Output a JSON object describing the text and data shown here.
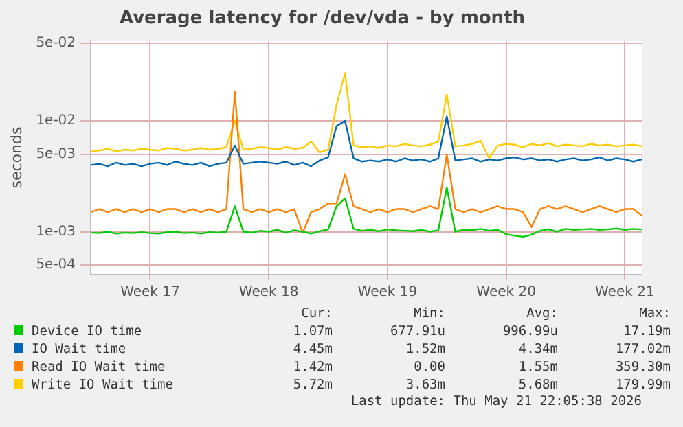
{
  "chart_data": {
    "type": "line",
    "title": "Average latency for /dev/vda - by month",
    "ylabel": "seconds",
    "log": "y",
    "grid": true,
    "legend": "bottom",
    "marker": "none",
    "line_style": "solid",
    "categories": [
      null,
      null,
      null,
      null,
      null,
      null,
      null,
      "Week 17",
      null,
      null,
      null,
      null,
      null,
      null,
      null,
      null,
      null,
      null,
      null,
      null,
      null,
      "Week 18",
      null,
      null,
      null,
      null,
      null,
      null,
      null,
      null,
      null,
      null,
      null,
      null,
      null,
      "Week 19",
      null,
      null,
      null,
      null,
      null,
      null,
      null,
      null,
      null,
      null,
      null,
      null,
      null,
      "Week 20",
      null,
      null,
      null,
      null,
      null,
      null,
      null,
      null,
      null,
      null,
      null,
      null,
      null,
      "Week 21",
      null,
      null
    ],
    "ylim": [
      0.00041,
      0.053
    ],
    "yticks": [
      {
        "value": 0.0005,
        "label": "5e-04"
      },
      {
        "value": 0.001,
        "label": "1e-03"
      },
      {
        "value": 0.005,
        "label": "5e-03"
      },
      {
        "value": 0.01,
        "label": "1e-02"
      },
      {
        "value": 0.05,
        "label": "5e-02"
      }
    ],
    "series": [
      {
        "name": "Device IO time",
        "color": "#00cc00",
        "values": [
          0.00098,
          0.00097,
          0.001,
          0.00096,
          0.00098,
          0.00097,
          0.00099,
          0.00097,
          0.00096,
          0.00099,
          0.001,
          0.00097,
          0.00098,
          0.00096,
          0.00099,
          0.00098,
          0.001,
          0.0017,
          0.001,
          0.00098,
          0.00102,
          0.001,
          0.00104,
          0.00098,
          0.00103,
          0.001,
          0.00096,
          0.00101,
          0.00105,
          0.0017,
          0.002,
          0.00106,
          0.00102,
          0.00104,
          0.00101,
          0.00105,
          0.00103,
          0.00102,
          0.00101,
          0.00104,
          0.001,
          0.00103,
          0.0025,
          0.001,
          0.00104,
          0.00103,
          0.00106,
          0.00102,
          0.00104,
          0.00095,
          0.00092,
          0.0009,
          0.00094,
          0.00102,
          0.00105,
          0.001,
          0.00106,
          0.00104,
          0.00105,
          0.00106,
          0.00104,
          0.00105,
          0.00107,
          0.00104,
          0.00106,
          0.00105
        ]
      },
      {
        "name": "IO Wait time",
        "color": "#0066b3",
        "values": [
          0.004,
          0.0041,
          0.0039,
          0.0042,
          0.004,
          0.0041,
          0.0039,
          0.0041,
          0.0042,
          0.004,
          0.0043,
          0.0041,
          0.004,
          0.0042,
          0.0039,
          0.0041,
          0.0042,
          0.006,
          0.0041,
          0.0042,
          0.0043,
          0.0042,
          0.0041,
          0.0043,
          0.004,
          0.0042,
          0.0039,
          0.0044,
          0.0047,
          0.009,
          0.01,
          0.0046,
          0.0043,
          0.0044,
          0.0043,
          0.0045,
          0.0043,
          0.0046,
          0.0044,
          0.0045,
          0.0043,
          0.0046,
          0.011,
          0.0044,
          0.0045,
          0.0046,
          0.0043,
          0.0045,
          0.0044,
          0.0046,
          0.0047,
          0.0045,
          0.0046,
          0.0044,
          0.0045,
          0.0043,
          0.0045,
          0.0046,
          0.0044,
          0.0045,
          0.0047,
          0.0044,
          0.0046,
          0.0045,
          0.0043,
          0.0045
        ]
      },
      {
        "name": "Read IO Wait time",
        "color": "#ff8000",
        "values": [
          0.0015,
          0.0016,
          0.0015,
          0.0016,
          0.0015,
          0.0016,
          0.0015,
          0.0016,
          0.0015,
          0.0016,
          0.0016,
          0.0015,
          0.0016,
          0.0015,
          0.0016,
          0.0015,
          0.0016,
          0.0184,
          0.0016,
          0.0015,
          0.0016,
          0.0015,
          0.0016,
          0.0015,
          0.0016,
          0.00098,
          0.0015,
          0.0016,
          0.0018,
          0.0018,
          0.0033,
          0.0017,
          0.0016,
          0.0015,
          0.0016,
          0.0015,
          0.0016,
          0.0016,
          0.0015,
          0.0016,
          0.0017,
          0.0016,
          0.005,
          0.0016,
          0.0015,
          0.0016,
          0.0015,
          0.0016,
          0.0017,
          0.0016,
          0.0016,
          0.0015,
          0.0011,
          0.0016,
          0.0017,
          0.0016,
          0.0017,
          0.0016,
          0.0015,
          0.0016,
          0.0017,
          0.0016,
          0.0015,
          0.0016,
          0.0016,
          0.0014
        ]
      },
      {
        "name": "Write IO Wait time",
        "color": "#ffcc00",
        "values": [
          0.0053,
          0.0054,
          0.0056,
          0.0053,
          0.0055,
          0.0054,
          0.0056,
          0.0055,
          0.0054,
          0.0057,
          0.0056,
          0.0054,
          0.0055,
          0.0057,
          0.0055,
          0.0056,
          0.0058,
          0.01,
          0.0055,
          0.0056,
          0.0058,
          0.0057,
          0.0055,
          0.0058,
          0.0056,
          0.0057,
          0.0065,
          0.0052,
          0.0055,
          0.014,
          0.027,
          0.006,
          0.0058,
          0.0059,
          0.0057,
          0.006,
          0.0059,
          0.0062,
          0.006,
          0.0059,
          0.0061,
          0.0065,
          0.0173,
          0.0059,
          0.006,
          0.0062,
          0.0066,
          0.0046,
          0.006,
          0.0062,
          0.0061,
          0.0058,
          0.0062,
          0.006,
          0.0063,
          0.0059,
          0.0061,
          0.006,
          0.0059,
          0.0062,
          0.006,
          0.0061,
          0.0059,
          0.006,
          0.0061,
          0.0059
        ]
      }
    ],
    "annotations": [
      "Cur:",
      "Min:",
      "Avg:",
      "Max:",
      "1.07m",
      "677.91u",
      "996.99u",
      "17.19m",
      "4.45m",
      "1.52m",
      "4.34m",
      "177.02m",
      "1.42m",
      "0.00",
      "1.55m",
      "359.30m",
      "5.72m",
      "3.63m",
      "5.68m",
      "179.99m",
      "Last update: Thu May 21 22:05:38 2026"
    ]
  }
}
